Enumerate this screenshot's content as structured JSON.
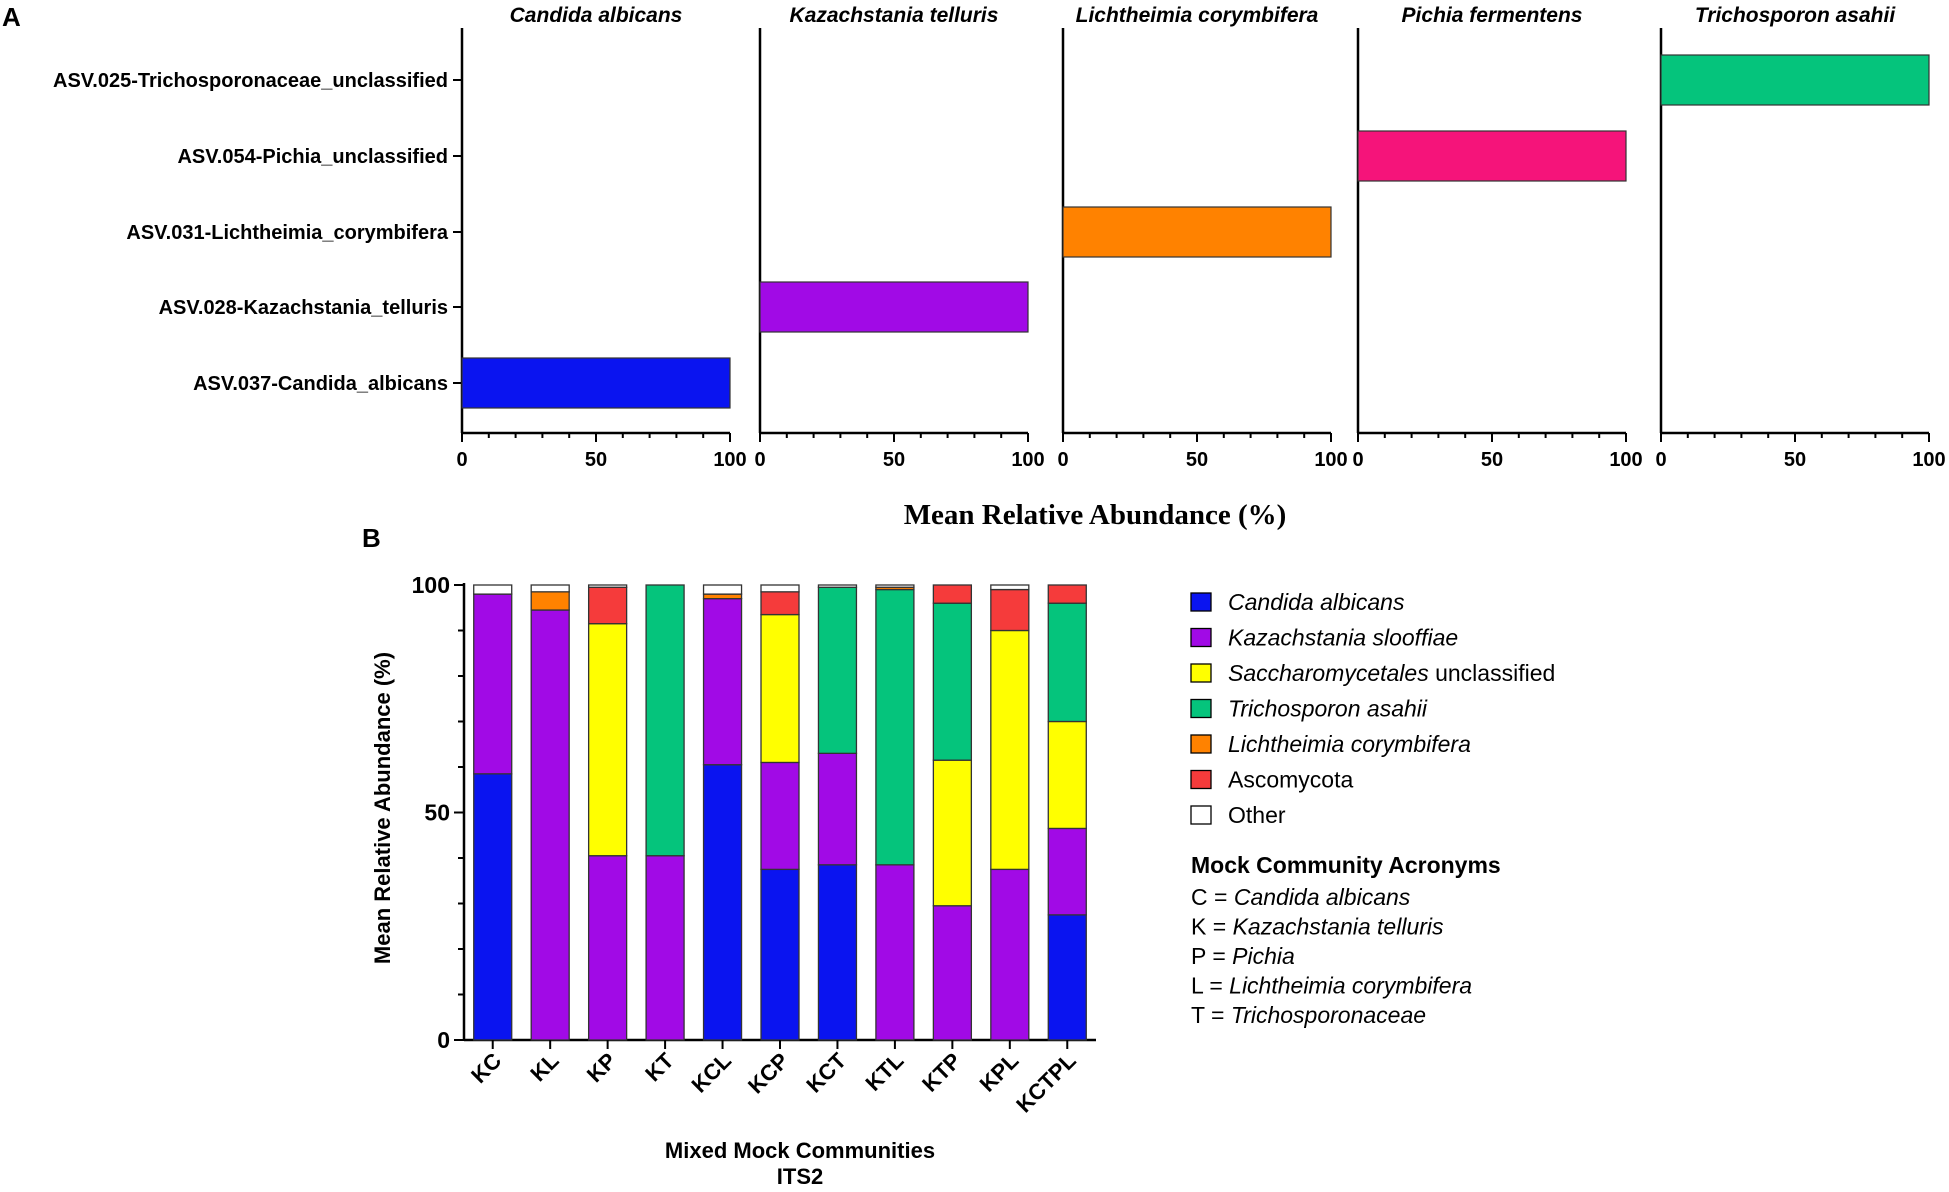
{
  "chart_data": [
    {
      "panel": "A",
      "type": "bar",
      "orientation": "horizontal",
      "categories": [
        "ASV.025-Trichosporonaceae_unclassified",
        "ASV.054-Pichia_unclassified",
        "ASV.031-Lichtheimia_corymbifera",
        "ASV.028-Kazachstania_telluris",
        "ASV.037-Candida_albicans"
      ],
      "facets": [
        {
          "title": "Candida albicans",
          "values": [
            0,
            0,
            0,
            0,
            100
          ],
          "color": "#0a14f0"
        },
        {
          "title": "Kazachstania telluris",
          "values": [
            0,
            0,
            0,
            100,
            0
          ],
          "color": "#a10ae6"
        },
        {
          "title": "Lichtheimia corymbifera",
          "values": [
            0,
            0,
            100,
            0,
            0
          ],
          "color": "#ff8200"
        },
        {
          "title": "Pichia fermentens",
          "values": [
            0,
            100,
            0,
            0,
            0
          ],
          "color": "#f5147a"
        },
        {
          "title": "Trichosporon asahii",
          "values": [
            100,
            0,
            0,
            0,
            0
          ],
          "color": "#05c47c"
        }
      ],
      "xlim": [
        0,
        100
      ],
      "xticks": [
        "0",
        "50",
        "100"
      ],
      "xlabel": "Mean Relative Abundance  (%)"
    },
    {
      "panel": "B",
      "type": "bar",
      "stacked": true,
      "categories": [
        "KC",
        "KL",
        "KP",
        "KT",
        "KCL",
        "KCP",
        "KCT",
        "KTL",
        "KTP",
        "KPL",
        "KCTPL"
      ],
      "series": [
        {
          "name": "Candida albicans",
          "color": "#0a14f0",
          "values": [
            58.5,
            0,
            0,
            0,
            60.5,
            37.5,
            38.5,
            0,
            0,
            0,
            27.5
          ]
        },
        {
          "name": "Kazachstania slooffiae",
          "color": "#a10ae6",
          "values": [
            39.5,
            94.5,
            40.5,
            40.5,
            36.5,
            23.5,
            24.5,
            38.5,
            29.5,
            37.5,
            19
          ]
        },
        {
          "name": "Saccharomycetales unclassified",
          "color": "#ffff00",
          "values": [
            0,
            0,
            51,
            0,
            0,
            32.5,
            0,
            0,
            32,
            52.5,
            23.5
          ]
        },
        {
          "name": "Trichosporon asahii",
          "color": "#05c47c",
          "values": [
            0,
            0,
            0,
            59.5,
            0,
            0,
            36.5,
            60.5,
            34.5,
            0,
            26
          ]
        },
        {
          "name": "Lichtheimia corymbifera",
          "color": "#ff8200",
          "values": [
            0,
            4,
            0,
            0,
            1,
            0,
            0,
            0.5,
            0,
            0,
            0
          ]
        },
        {
          "name": "Ascomycota",
          "color": "#f53b3b",
          "values": [
            0,
            0,
            8,
            0,
            0,
            5,
            0,
            0,
            4,
            9,
            4
          ]
        },
        {
          "name": "Other",
          "color": "#ffffff",
          "values": [
            2,
            1.5,
            0.5,
            0,
            2,
            1.5,
            0.5,
            0.5,
            0,
            1,
            0
          ]
        }
      ],
      "ylim": [
        0,
        100
      ],
      "yticks": [
        "0",
        "50",
        "100"
      ],
      "ylabel": "Mean Relative Abundance (%)",
      "xlabel": "Mixed Mock Communities",
      "xlabel2": "ITS2",
      "legend": {
        "entries": [
          {
            "italic": "Candida albicans",
            "plain": ""
          },
          {
            "italic": "Kazachstania slooffiae",
            "plain": ""
          },
          {
            "italic": "Saccharomycetales",
            "plain": " unclassified"
          },
          {
            "italic": "Trichosporon asahii",
            "plain": ""
          },
          {
            "italic": "Lichtheimia corymbifera",
            "plain": ""
          },
          {
            "italic": "",
            "plain": "Ascomycota"
          },
          {
            "italic": "",
            "plain": "Other"
          }
        ],
        "acronyms_title": "Mock Community Acronyms",
        "acronyms": [
          {
            "key": "C = ",
            "value": "Candida albicans"
          },
          {
            "key": "K = ",
            "value": "Kazachstania telluris"
          },
          {
            "key": "P = ",
            "value": "Pichia"
          },
          {
            "key": "L = ",
            "value": "Lichtheimia corymbifera"
          },
          {
            "key": "T = ",
            "value": "Trichosporonaceae"
          }
        ]
      }
    }
  ],
  "labels": {
    "panel_a": "A",
    "panel_b": "B"
  }
}
